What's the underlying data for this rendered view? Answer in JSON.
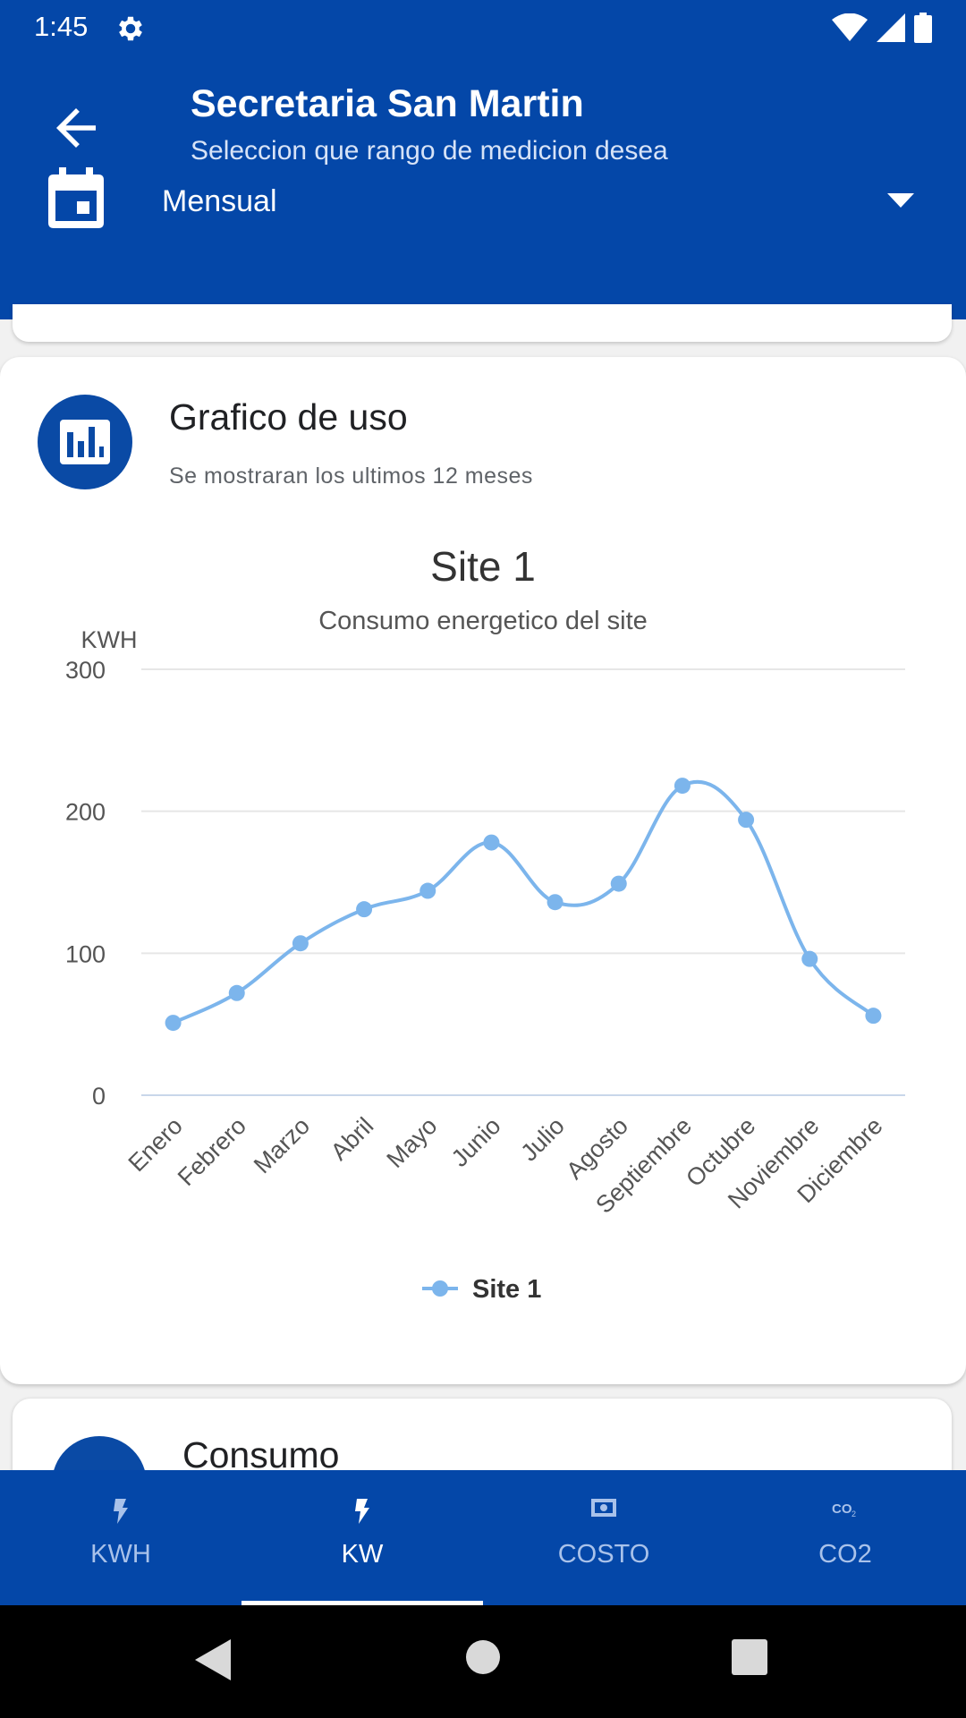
{
  "status_bar": {
    "time": "1:45",
    "icons": [
      "gear-icon",
      "wifi-icon",
      "signal-icon",
      "battery-icon"
    ]
  },
  "header": {
    "title": "Secretaria San Martin",
    "subtitle": "Seleccion que rango de medicion desea",
    "range": {
      "selected": "Mensual"
    }
  },
  "card": {
    "title": "Grafico de uso",
    "subtitle": "Se mostraran los ultimos 12 meses"
  },
  "chart_data": {
    "type": "line",
    "title": "Site 1",
    "subtitle": "Consumo energetico del site",
    "ylabel": "KWH",
    "xlabel": "",
    "ylim": [
      0,
      300
    ],
    "yticks": [
      0,
      100,
      200,
      300
    ],
    "grid": true,
    "smooth": true,
    "legend": "bottom",
    "categories": [
      "Enero",
      "Febrero",
      "Marzo",
      "Abril",
      "Mayo",
      "Junio",
      "Julio",
      "Agosto",
      "Septiembre",
      "Octubre",
      "Noviembre",
      "Diciembre"
    ],
    "series": [
      {
        "name": "Site 1",
        "color": "#7cb5ec",
        "values": [
          51,
          72,
          107,
          131,
          144,
          178,
          136,
          149,
          218,
          194,
          96,
          56
        ]
      }
    ]
  },
  "next_card": {
    "title": "Consumo"
  },
  "bottom_nav": {
    "tabs": [
      {
        "label": "KWH",
        "icon": "bolt-icon",
        "active": false
      },
      {
        "label": "KW",
        "icon": "bolt-icon",
        "active": true
      },
      {
        "label": "COSTO",
        "icon": "money-icon",
        "active": false
      },
      {
        "label": "CO2",
        "icon": "co2-icon",
        "active": false
      }
    ]
  },
  "colors": {
    "primary": "#0447a8",
    "series": "#7cb5ec"
  }
}
